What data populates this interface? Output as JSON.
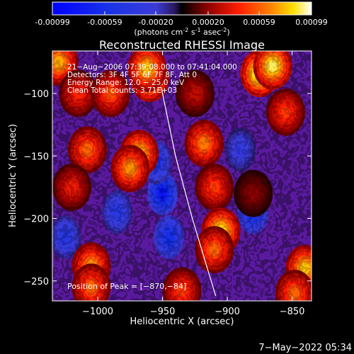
{
  "colorbar": {
    "ticks": [
      "-0.00099",
      "-0.00059",
      "-0.00020",
      "0.00020",
      "0.00059",
      "0.00099"
    ],
    "range": [
      -0.00099,
      0.00099
    ],
    "unit_parts": {
      "open": "(photons cm",
      "exp1": "-2",
      "mid1": " s",
      "exp2": "-1",
      "mid2": " asec",
      "exp3": "-2",
      "close": ")"
    }
  },
  "chart_data": {
    "type": "heatmap",
    "title": "Reconstructed RHESSI Image",
    "xlabel": "Heliocentric X (arcsec)",
    "ylabel": "Heliocentric Y (arcsec)",
    "xlim": [
      -1035,
      -835
    ],
    "ylim": [
      -266,
      -66
    ],
    "xticks": [
      -1000,
      -950,
      -900,
      -850
    ],
    "yticks": [
      -100,
      -150,
      -200,
      -250
    ],
    "xtick_labels": [
      "−1000",
      "−950",
      "−900",
      "−850"
    ],
    "ytick_labels": [
      "−100",
      "−150",
      "−200",
      "−250"
    ],
    "info_lines": [
      "21−Aug−2006 07:39:08.000 to 07:41:04.000",
      "Detectors: 3F 4F 5F 6F 7F 8F, Att 0",
      "Energy Range: 12.0 − 25.0 keV",
      "Clean     Total counts: 3.71E+03"
    ],
    "peak_label": "Position of Peak = [−870,−84]",
    "peak_position": [
      -870,
      -84
    ],
    "limb_line": [
      [
        -951,
        -95
      ],
      [
        -940,
        -150
      ],
      [
        -927,
        -200
      ],
      [
        -909,
        -262
      ]
    ],
    "emission_blobs": [
      {
        "x": -1030,
        "y": -75,
        "value": 0.00075
      },
      {
        "x": -1015,
        "y": -100,
        "value": 0.00045
      },
      {
        "x": -990,
        "y": -100,
        "value": 0.00055
      },
      {
        "x": -960,
        "y": -88,
        "value": 0.0009
      },
      {
        "x": -962,
        "y": -80,
        "value": 0.0008
      },
      {
        "x": -968,
        "y": -148,
        "value": 0.0008
      },
      {
        "x": -975,
        "y": -160,
        "value": 0.0007
      },
      {
        "x": -1008,
        "y": -145,
        "value": 0.0006
      },
      {
        "x": -1020,
        "y": -175,
        "value": 0.0004
      },
      {
        "x": -1005,
        "y": -238,
        "value": 0.0007
      },
      {
        "x": -1005,
        "y": -255,
        "value": 0.0006
      },
      {
        "x": -918,
        "y": -140,
        "value": 0.00065
      },
      {
        "x": -910,
        "y": -175,
        "value": 0.0005
      },
      {
        "x": -905,
        "y": -210,
        "value": 0.00085
      },
      {
        "x": -910,
        "y": -225,
        "value": 0.0006
      },
      {
        "x": -875,
        "y": -84,
        "value": 0.00099
      },
      {
        "x": -865,
        "y": -78,
        "value": 0.0009
      },
      {
        "x": -855,
        "y": -115,
        "value": 0.0005
      },
      {
        "x": -840,
        "y": -240,
        "value": 0.0008
      },
      {
        "x": -848,
        "y": -260,
        "value": 0.0006
      },
      {
        "x": -935,
        "y": -258,
        "value": 0.0005
      },
      {
        "x": -925,
        "y": -100,
        "value": 0.0003
      },
      {
        "x": -880,
        "y": -180,
        "value": 0.0002
      }
    ],
    "negative_blobs": [
      {
        "x": -950,
        "y": -180,
        "value": -0.0008
      },
      {
        "x": -945,
        "y": -215,
        "value": -0.0006
      },
      {
        "x": -955,
        "y": -155,
        "value": -0.0005
      },
      {
        "x": -880,
        "y": -195,
        "value": -0.0006
      },
      {
        "x": -1025,
        "y": -215,
        "value": -0.0004
      },
      {
        "x": -985,
        "y": -195,
        "value": -0.0004
      },
      {
        "x": -890,
        "y": -145,
        "value": -0.0003
      }
    ]
  },
  "footer": {
    "timestamp": "7−May−2022 05:34"
  }
}
